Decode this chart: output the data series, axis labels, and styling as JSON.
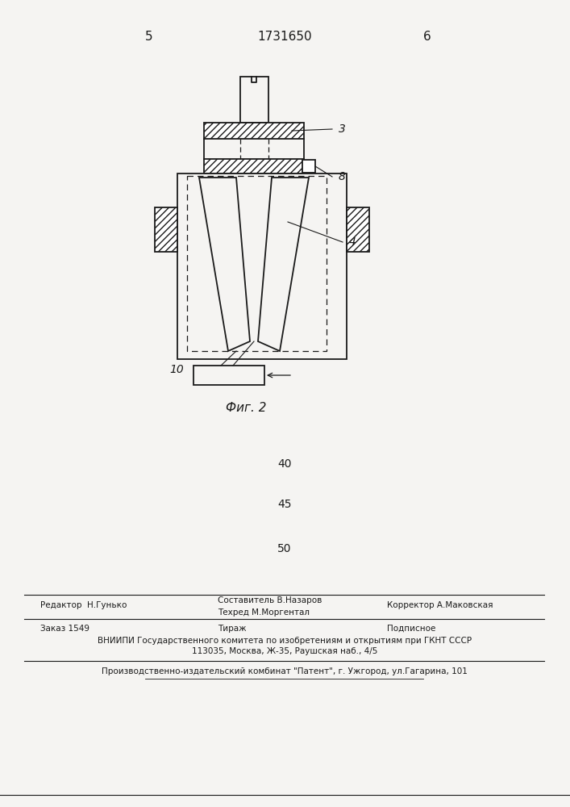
{
  "bg_color": "#f5f4f2",
  "line_color": "#1a1a1a",
  "page_num_left": "5",
  "page_num_center": "1731650",
  "page_num_right": "6",
  "fig_label": "Фиг. 2",
  "label_3": "3",
  "label_4": "4",
  "label_8": "8",
  "label_10": "10",
  "numbers_40": "40",
  "numbers_45": "45",
  "numbers_50": "50",
  "footer_line1_left": "Редактор  Н.Гунько",
  "footer_line1_center": "Составитель В.Назаров",
  "footer_line1_center2": "Техред М.Моргентал",
  "footer_line1_right": "Корректор А.Маковская",
  "footer_line2_col1": "Заказ 1549",
  "footer_line2_col2": "Тираж",
  "footer_line2_col3": "Подписное",
  "footer_line3": "ВНИИПИ Государственного комитета по изобретениям и открытиям при ГКНТ СССР",
  "footer_line4": "113035, Москва, Ж-35, Раушская наб., 4/5",
  "footer_line5": "Производственно-издательский комбинат \"Патент\", г. Ужгород, ул.Гагарина, 101"
}
